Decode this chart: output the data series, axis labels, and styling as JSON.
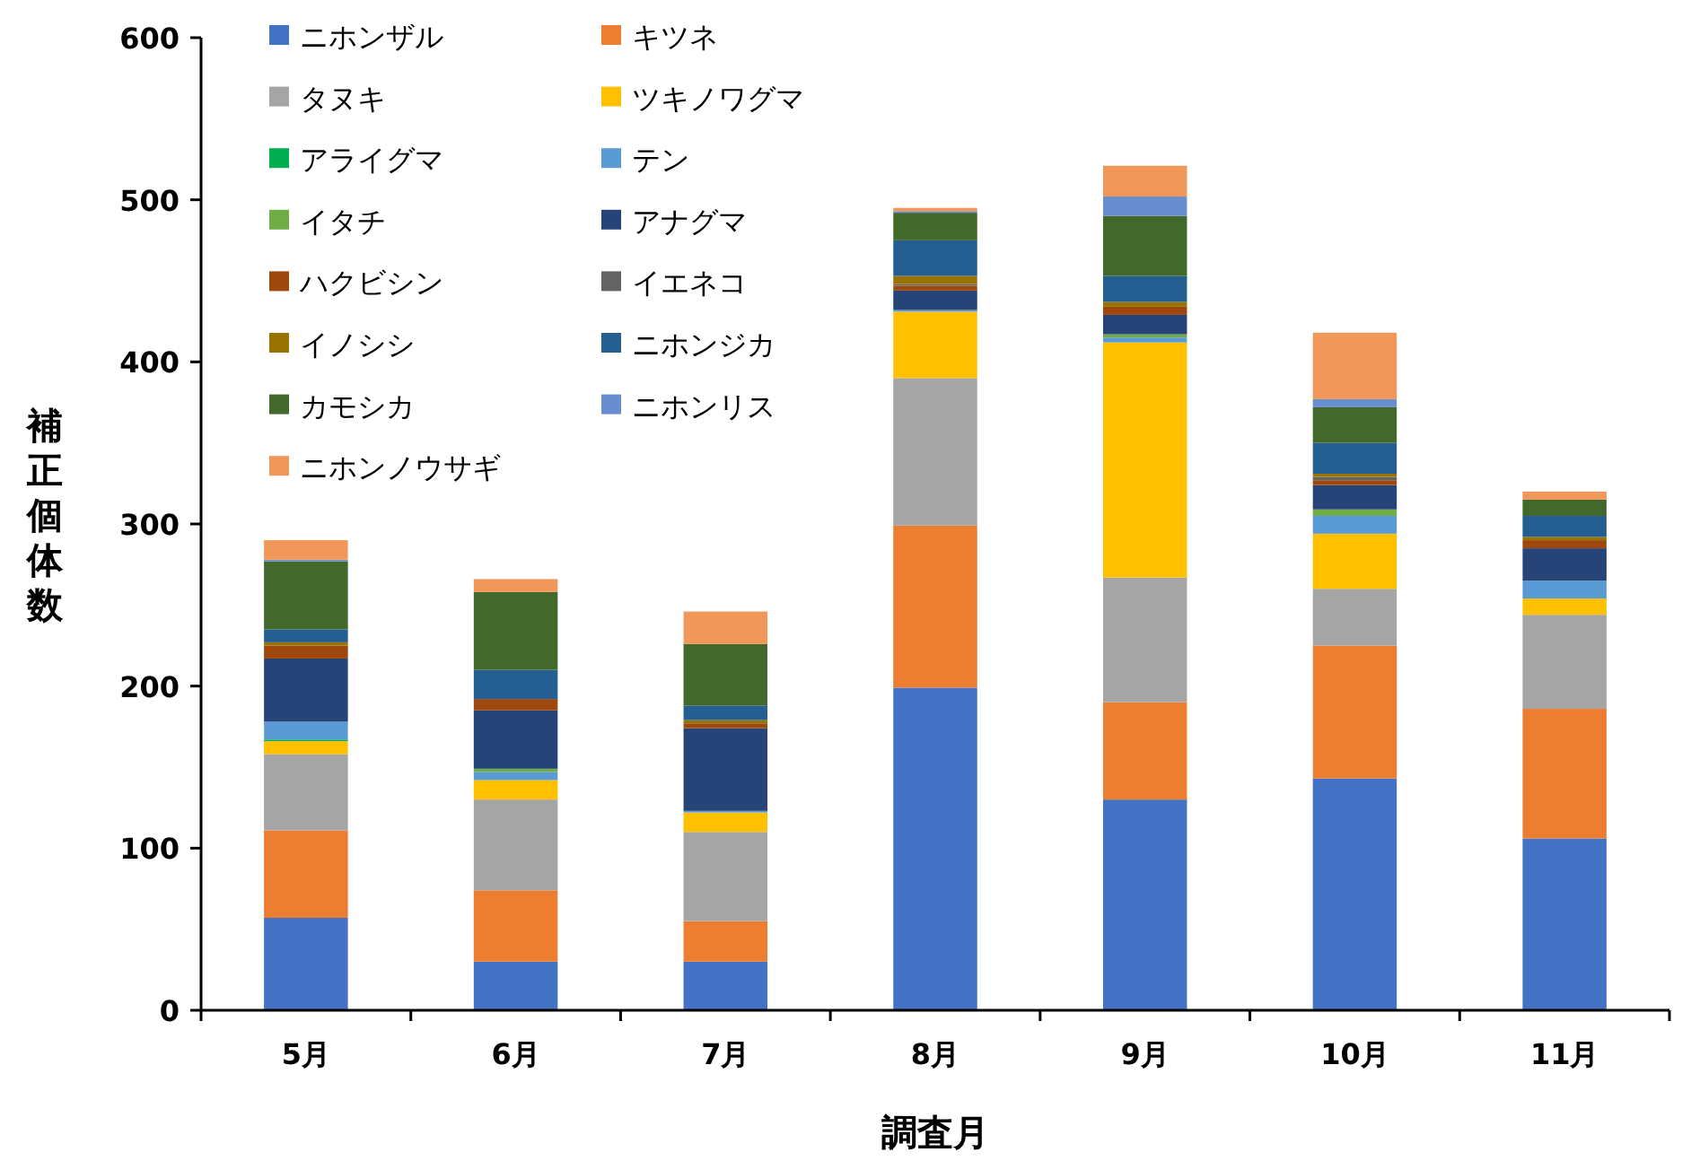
{
  "chart_data": {
    "type": "bar",
    "stacked": true,
    "legend": "top left",
    "xlabel": "調査月",
    "ylabel": "補正個体数",
    "categories": [
      "5月",
      "6月",
      "7月",
      "8月",
      "9月",
      "10月",
      "11月"
    ],
    "ylim": [
      0,
      600
    ],
    "yticks": [
      0,
      100,
      200,
      300,
      400,
      500,
      600
    ],
    "series": [
      {
        "name": "ニホンザル",
        "color": "#4472c4",
        "values": [
          57,
          30,
          30,
          199,
          130,
          143,
          106
        ]
      },
      {
        "name": "キツネ",
        "color": "#ed7d31",
        "values": [
          54,
          44,
          25,
          100,
          60,
          82,
          80
        ]
      },
      {
        "name": "タヌキ",
        "color": "#a5a5a5",
        "values": [
          47,
          56,
          55,
          91,
          77,
          35,
          58
        ]
      },
      {
        "name": "ツキノワグマ",
        "color": "#ffc000",
        "values": [
          8,
          12,
          12,
          41,
          145,
          34,
          10
        ]
      },
      {
        "name": "アライグマ",
        "color": "#00b050",
        "values": [
          1,
          0,
          0,
          0,
          0,
          0,
          0
        ]
      },
      {
        "name": "テン",
        "color": "#5b9bd5",
        "values": [
          11,
          5,
          1,
          1,
          3,
          11,
          11
        ]
      },
      {
        "name": "イタチ",
        "color": "#70ad47",
        "values": [
          0,
          2,
          0,
          0,
          2,
          4,
          0
        ]
      },
      {
        "name": "アナグマ",
        "color": "#264478",
        "values": [
          39,
          36,
          51,
          12,
          12,
          15,
          20
        ]
      },
      {
        "name": "ハクビシン",
        "color": "#9e480e",
        "values": [
          8,
          7,
          3,
          3,
          5,
          3,
          5
        ]
      },
      {
        "name": "イエネコ",
        "color": "#636363",
        "values": [
          0,
          0,
          0,
          1,
          0,
          2,
          0
        ]
      },
      {
        "name": "イノシシ",
        "color": "#997300",
        "values": [
          2,
          0,
          2,
          5,
          3,
          2,
          2
        ]
      },
      {
        "name": "ニホンジカ",
        "color": "#255e91",
        "values": [
          8,
          18,
          9,
          22,
          16,
          19,
          13
        ]
      },
      {
        "name": "カモシカ",
        "color": "#43682b",
        "values": [
          42,
          48,
          38,
          17,
          37,
          22,
          10
        ]
      },
      {
        "name": "ニホンリス",
        "color": "#698ed0",
        "values": [
          1,
          0,
          0,
          1,
          12,
          5,
          0
        ]
      },
      {
        "name": "ニホンノウサギ",
        "color": "#f1975a",
        "values": [
          12,
          8,
          20,
          2,
          19,
          41,
          5
        ]
      }
    ]
  }
}
